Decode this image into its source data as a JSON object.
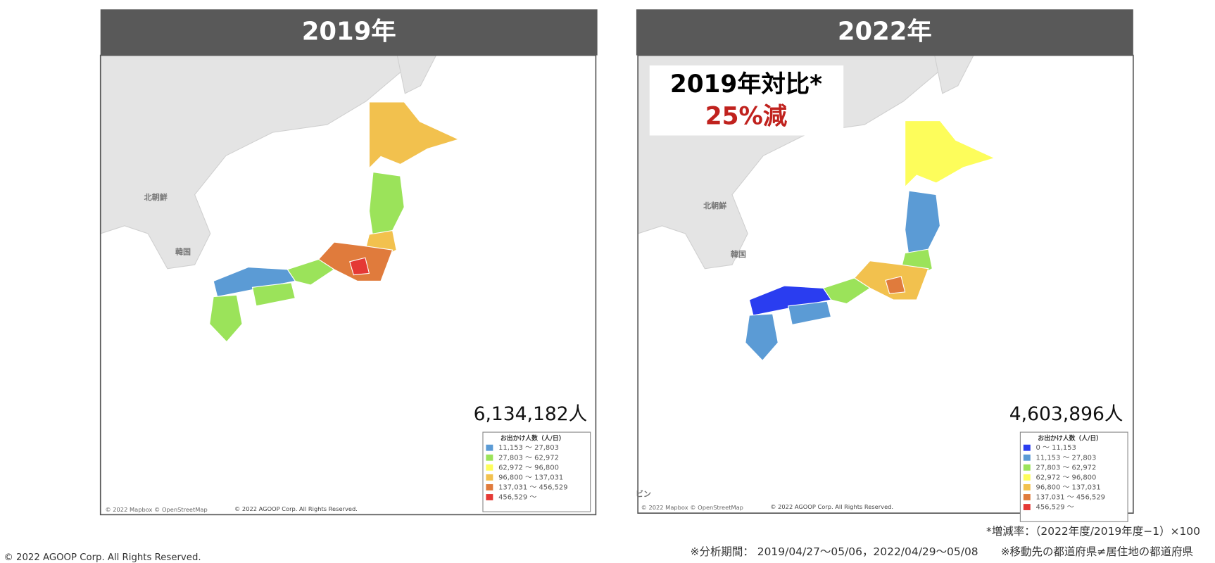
{
  "panels": [
    {
      "title": "2019年",
      "total": "6,134,182人",
      "map_labels": [
        "北朝鮮",
        "韓国"
      ],
      "legend": {
        "title": "お出かけ人数（人/日）",
        "items": [
          {
            "label": "11,153 〜 27,803",
            "color": "#5b9bd5"
          },
          {
            "label": "27,803 〜 62,972",
            "color": "#9be35a"
          },
          {
            "label": "62,972 〜 96,800",
            "color": "#fdfd5b"
          },
          {
            "label": "96,800 〜 137,031",
            "color": "#f2c14e"
          },
          {
            "label": "137,031 〜 456,529",
            "color": "#e07b3c"
          },
          {
            "label": "456,529 〜",
            "color": "#e53935"
          }
        ]
      },
      "credits": [
        "© 2022 Mapbox © OpenStreetMap",
        "© 2022 AGOOP Corp. All Rights Reserved."
      ]
    },
    {
      "title": "2022年",
      "total": "4,603,896人",
      "map_labels": [
        "北朝鮮",
        "韓国",
        "ビン"
      ],
      "legend": {
        "title": "お出かけ人数（人/日）",
        "items": [
          {
            "label": "0 〜 11,153",
            "color": "#2a3df0"
          },
          {
            "label": "11,153 〜 27,803",
            "color": "#5b9bd5"
          },
          {
            "label": "27,803 〜 62,972",
            "color": "#9be35a"
          },
          {
            "label": "62,972 〜 96,800",
            "color": "#fdfd5b"
          },
          {
            "label": "96,800 〜 137,031",
            "color": "#f2c14e"
          },
          {
            "label": "137,031 〜 456,529",
            "color": "#e07b3c"
          },
          {
            "label": "456,529 〜",
            "color": "#e53935"
          }
        ]
      },
      "credits": [
        "© 2022 Mapbox © OpenStreetMap",
        "© 2022 AGOOP Corp. All Rights Reserved."
      ]
    }
  ],
  "callout": {
    "line1": "2019年対比*",
    "line2": "25%減"
  },
  "notes": [
    "*増減率：（2022年度/2019年度−1）×100",
    "※分析期間： 2019/04/27〜05/06，2022/04/29〜05/08",
    "※移動先の都道府県≠居住地の都道府県"
  ],
  "footer": "© 2022 AGOOP Corp. All Rights Reserved."
}
